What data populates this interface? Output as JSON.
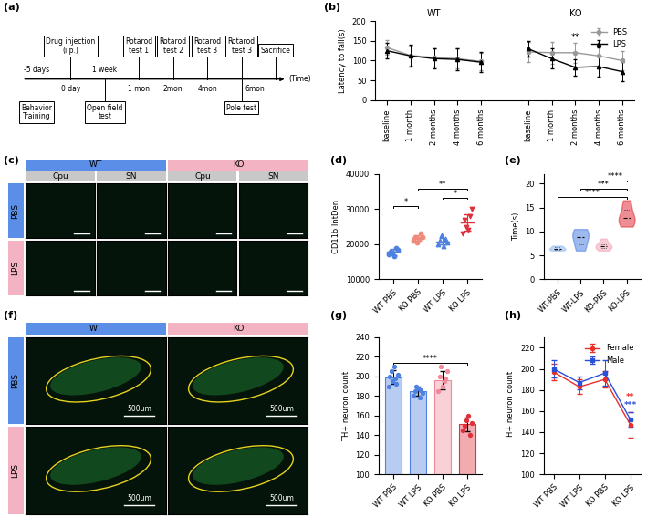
{
  "panel_labels": [
    "(a)",
    "(b)",
    "(c)",
    "(d)",
    "(e)",
    "(f)",
    "(g)",
    "(h)"
  ],
  "timeline": {
    "axis_label": "(Time)",
    "events": [
      {
        "time": "-5 days",
        "above": null,
        "below": "Behavior\nTraining"
      },
      {
        "time": "0 day",
        "above": "Drug injection\n(i.p.)",
        "below": null
      },
      {
        "time": "1 week",
        "above": null,
        "below": "Open field\ntest"
      },
      {
        "time": "1 mon",
        "above": "Rotarod\ntest 1",
        "below": null
      },
      {
        "time": "2mon",
        "above": "Rotarod\ntest 2",
        "below": null
      },
      {
        "time": "4mon",
        "above": "Rotarod\ntest 3",
        "below": null
      },
      {
        "time": "6mon",
        "above": "Rotarod\ntest 3",
        "below": "Pole test"
      },
      {
        "time": null,
        "above": "Sacrifice",
        "below": null
      }
    ]
  },
  "image_grid_c": {
    "groups": [
      "WT",
      "KO"
    ],
    "regions": [
      "Cpu",
      "SN"
    ],
    "rows": [
      "PBS",
      "LPS"
    ]
  },
  "image_grid_f": {
    "groups": [
      "WT",
      "KO"
    ],
    "rows": [
      "PBS",
      "LPS"
    ],
    "scale_bar": "500um"
  },
  "chart_data": [
    {
      "type": "line",
      "ylabel": "Latency to fall(s)",
      "categories": [
        "baseline",
        "1 month",
        "2 months",
        "4 months",
        "6 months",
        null,
        "baseline",
        "1 month",
        "2 months",
        "4 months",
        "6 months"
      ],
      "groups": [
        {
          "name": "WT",
          "categories": [
            0,
            4
          ]
        },
        {
          "name": "KO",
          "categories": [
            6,
            10
          ]
        }
      ],
      "ylim": [
        0,
        200
      ],
      "yticks": [
        0,
        50,
        100,
        150,
        200
      ],
      "legend": "upper right",
      "series": [
        {
          "name": "PBS",
          "color": "#999999",
          "marker": "o",
          "values": [
            133,
            113,
            108,
            105,
            98,
            null,
            122,
            120,
            120,
            112,
            100
          ],
          "errors": [
            18,
            25,
            22,
            25,
            22,
            null,
            25,
            28,
            25,
            30,
            25
          ]
        },
        {
          "name": "LPS",
          "color": "#000000",
          "marker": "^",
          "values": [
            125,
            112,
            105,
            103,
            96,
            null,
            130,
            105,
            83,
            85,
            72
          ],
          "errors": [
            20,
            28,
            25,
            28,
            25,
            null,
            20,
            25,
            20,
            25,
            25
          ]
        }
      ],
      "annotations": [
        {
          "category": 8,
          "label": "**"
        }
      ]
    },
    {
      "type": "dot",
      "ylabel": "CD11b IntDen",
      "ylim": [
        10000,
        40000
      ],
      "yticks": [
        10000,
        20000,
        30000,
        40000
      ],
      "series": [
        {
          "name": "WT PBS",
          "color": "#4f81e0",
          "marker": "o",
          "values": [
            17000,
            18000,
            17500,
            16500,
            19000,
            18500
          ]
        },
        {
          "name": "KO PBS",
          "color": "#f08a7a",
          "marker": "o",
          "values": [
            21000,
            22000,
            20500,
            21500,
            23000,
            22000
          ]
        },
        {
          "name": "WT LPS",
          "color": "#4f81e0",
          "marker": "^",
          "values": [
            20000,
            21000,
            22500,
            19500,
            21500,
            20500
          ]
        },
        {
          "name": "KO LPS",
          "color": "#e0303a",
          "marker": "v",
          "values": [
            23000,
            27000,
            25000,
            24000,
            28000,
            30000
          ]
        }
      ],
      "comparisons": [
        {
          "pair": [
            0,
            1
          ],
          "label": "*"
        },
        {
          "pair": [
            2,
            3
          ],
          "label": "*"
        },
        {
          "pair": [
            1,
            3
          ],
          "label": "**"
        }
      ]
    },
    {
      "type": "violin",
      "ylabel": "Time(s)",
      "ylim": [
        0,
        22
      ],
      "yticks": [
        0,
        5,
        10,
        15,
        20
      ],
      "series": [
        {
          "name": "WT-PBS",
          "color": "#8fb8f0",
          "values": [
            6,
            6.5,
            7,
            6.2,
            6.8,
            6.3
          ]
        },
        {
          "name": "WT-LPS",
          "color": "#4f81e0",
          "values": [
            6,
            7,
            8.5,
            9,
            10,
            10.5
          ]
        },
        {
          "name": "KO-PBS",
          "color": "#f3a3b5",
          "values": [
            6,
            6.5,
            7,
            7.5,
            8.5,
            6.8
          ]
        },
        {
          "name": "KO-LPS",
          "color": "#e0303a",
          "values": [
            11,
            12,
            12.5,
            13,
            15,
            16.5
          ]
        }
      ],
      "comparisons": [
        {
          "pair": [
            0,
            3
          ],
          "label": "****"
        },
        {
          "pair": [
            1,
            3
          ],
          "label": "***"
        },
        {
          "pair": [
            2,
            3
          ],
          "label": "****"
        }
      ]
    },
    {
      "type": "bar",
      "ylabel": "TH+ neuron count",
      "categories": [
        "WT PBS",
        "WT LPS",
        "KO PBS",
        "KO LPS"
      ],
      "values": [
        199,
        185,
        196,
        151
      ],
      "errors": [
        7,
        5,
        9,
        7
      ],
      "colors": [
        "#4f81e0",
        "#4f81e0",
        "#f08a9a",
        "#e0303a"
      ],
      "points": [
        [
          190,
          200,
          205,
          195,
          210,
          198,
          192,
          202
        ],
        [
          180,
          185,
          190,
          188,
          178,
          186,
          183
        ],
        [
          185,
          200,
          210,
          190,
          195,
          198,
          205
        ],
        [
          145,
          150,
          155,
          160,
          140,
          152
        ]
      ],
      "ylim": [
        100,
        240
      ],
      "yticks": [
        100,
        120,
        140,
        160,
        180,
        200,
        220,
        240
      ],
      "comparisons": [
        {
          "pair": [
            0,
            3
          ],
          "label": "****"
        }
      ]
    },
    {
      "type": "line",
      "ylabel": "TH+ neuron count",
      "categories": [
        "WT PBS",
        "WT LPS",
        "KO PBS",
        "KO LPS"
      ],
      "ylim": [
        100,
        230
      ],
      "yticks": [
        100,
        120,
        140,
        160,
        180,
        200,
        220
      ],
      "legend": "upper right",
      "series": [
        {
          "name": "Female",
          "color": "#e8302a",
          "marker": "o",
          "values": [
            197,
            183,
            190,
            147
          ],
          "errors": [
            8,
            7,
            8,
            12
          ]
        },
        {
          "name": "Male",
          "color": "#2a4fd9",
          "marker": "s",
          "values": [
            200,
            187,
            196,
            152
          ],
          "errors": [
            8,
            6,
            12,
            7
          ]
        }
      ],
      "annotations": [
        {
          "category": 3,
          "label": "***",
          "color": "#2a4fd9"
        },
        {
          "category": 3,
          "label": "**",
          "color": "#e8302a"
        }
      ]
    }
  ]
}
